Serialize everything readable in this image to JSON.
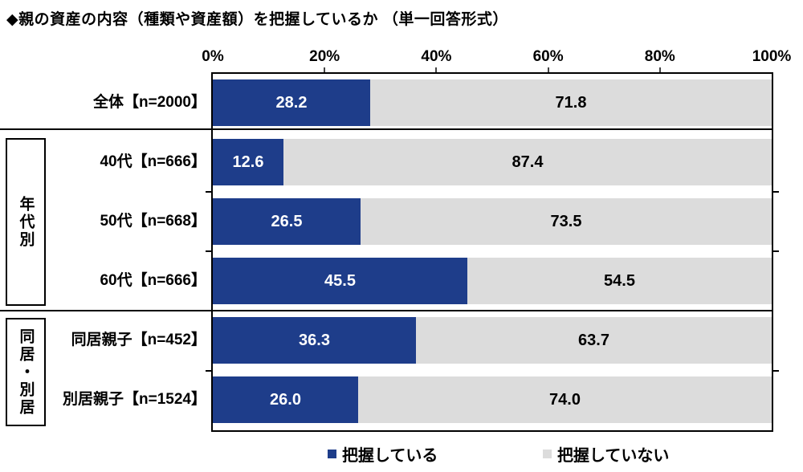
{
  "title": "◆親の資産の内容（種類や資産額）を把握しているか （単一回答形式）",
  "colors": {
    "aware": "#1e3d8a",
    "not_aware": "#dcdcdc",
    "axis": "#000000"
  },
  "chart_data": {
    "type": "bar",
    "orientation": "horizontal",
    "stacked": true,
    "title": "親の資産の内容（種類や資産額）を把握しているか（単一回答形式）",
    "categories": [
      "全体【n=2000】",
      "40代【n=666】",
      "50代【n=668】",
      "60代【n=666】",
      "同居親子【n=452】",
      "別居親子【n=1524】"
    ],
    "series": [
      {
        "name": "把握している",
        "color": "#1e3d8a",
        "text_color": "#ffffff",
        "values": [
          28.2,
          12.6,
          26.5,
          45.5,
          36.3,
          26.0
        ]
      },
      {
        "name": "把握していない",
        "color": "#dcdcdc",
        "text_color": "#000000",
        "values": [
          71.8,
          87.4,
          73.5,
          54.5,
          63.7,
          74.0
        ]
      }
    ],
    "x_axis": {
      "min": 0,
      "max": 100,
      "ticks": [
        "0%",
        "20%",
        "40%",
        "60%",
        "80%",
        "100%"
      ],
      "grid": false
    },
    "row_groups": [
      {
        "label": "年代別",
        "categories": [
          "40代【n=666】",
          "50代【n=668】",
          "60代【n=666】"
        ]
      },
      {
        "label": "同居・別居",
        "categories": [
          "同居親子【n=452】",
          "別居親子【n=1524】"
        ]
      }
    ],
    "legend": {
      "position": "bottom",
      "entries": [
        "把握している",
        "把握していない"
      ]
    }
  }
}
